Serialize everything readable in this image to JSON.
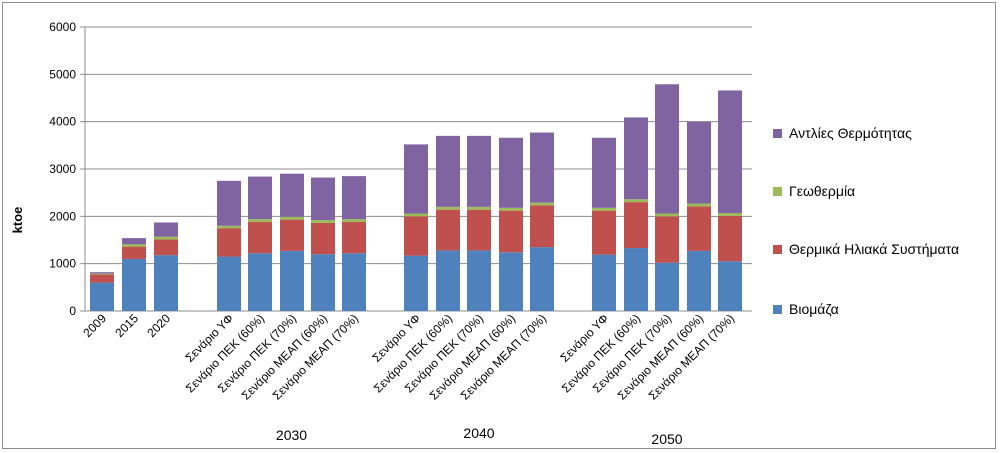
{
  "chart_data": {
    "type": "bar",
    "stacked": true,
    "title": "",
    "xlabel": "",
    "ylabel": "ktoe",
    "ylim": [
      0,
      6000
    ],
    "yticks": [
      "0",
      "1000",
      "2000",
      "3000",
      "4000",
      "5000",
      "6000"
    ],
    "grid": true,
    "legend_position": "right",
    "categories": [
      "2009",
      "2015",
      "2020",
      "Σενάριο ΥΦ",
      "Σενάριο ΠΕΚ (60%)",
      "Σενάριο ΠΕΚ (70%)",
      "Σενάριο ΜΕΑΠ (60%)",
      "Σενάριο ΜΕΑΠ (70%)",
      "Σενάριο ΥΦ",
      "Σενάριο ΠΕΚ (60%)",
      "Σενάριο ΠΕΚ (70%)",
      "Σενάριο ΜΕΑΠ (60%)",
      "Σενάριο ΜΕΑΠ (70%)",
      "Σενάριο ΥΦ",
      "Σενάριο ΠΕΚ (60%)",
      "Σενάριο ΠΕΚ (70%)",
      "Σενάριο ΜΕΑΠ (60%)",
      "Σενάριο ΜΕΑΠ (70%)"
    ],
    "groups": [
      {
        "label": "2030",
        "start": 3,
        "end": 7
      },
      {
        "label": "2040",
        "start": 8,
        "end": 12
      },
      {
        "label": "2050",
        "start": 13,
        "end": 17
      }
    ],
    "series": [
      {
        "name": "Βιομάζα",
        "color": "#4f81bd",
        "values": [
          600,
          1100,
          1180,
          1150,
          1220,
          1270,
          1200,
          1220,
          1170,
          1280,
          1280,
          1240,
          1350,
          1190,
          1330,
          1020,
          1270,
          1050
        ]
      },
      {
        "name": "Θερμικά Ηλιακά Συστήματα",
        "color": "#c0504d",
        "values": [
          170,
          260,
          330,
          600,
          660,
          660,
          660,
          660,
          830,
          860,
          860,
          880,
          880,
          930,
          970,
          980,
          940,
          960
        ]
      },
      {
        "name": "Γεωθερμία",
        "color": "#9bbb59",
        "values": [
          20,
          50,
          60,
          50,
          60,
          60,
          60,
          60,
          60,
          60,
          60,
          60,
          60,
          60,
          60,
          60,
          60,
          60
        ]
      },
      {
        "name": "Αντλίες Θερμότητας",
        "color": "#8064a2",
        "values": [
          30,
          130,
          300,
          950,
          900,
          910,
          900,
          910,
          1460,
          1500,
          1500,
          1480,
          1480,
          1480,
          1730,
          2730,
          1730,
          2590
        ]
      }
    ]
  }
}
